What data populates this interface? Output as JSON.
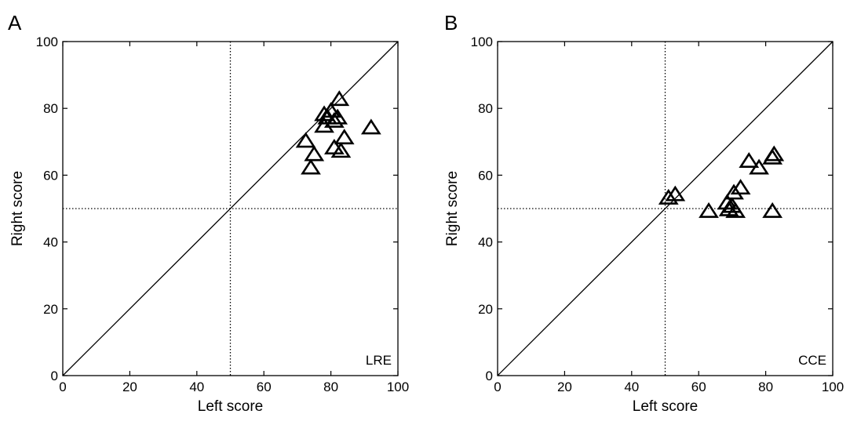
{
  "figure": {
    "colors": {
      "axes": "#000000",
      "marker": "#000000",
      "background": "#ffffff"
    },
    "marker_shape": "triangle-open"
  },
  "chart_data": [
    {
      "panel_label": "A",
      "type": "scatter",
      "xlabel": "Left score",
      "ylabel": "Right score",
      "xlim": [
        0,
        100
      ],
      "ylim": [
        0,
        100
      ],
      "xticks": [
        0,
        20,
        40,
        60,
        80,
        100
      ],
      "yticks": [
        0,
        20,
        40,
        60,
        80,
        100
      ],
      "grid": false,
      "annotation": "LRE",
      "reference_lines": {
        "diagonal": "y=x",
        "vertical_x": 50,
        "horizontal_y": 50
      },
      "points": [
        {
          "x": 82.5,
          "y": 82.5
        },
        {
          "x": 78,
          "y": 78
        },
        {
          "x": 80,
          "y": 79
        },
        {
          "x": 79,
          "y": 77
        },
        {
          "x": 82,
          "y": 77
        },
        {
          "x": 81,
          "y": 76
        },
        {
          "x": 78,
          "y": 74.5
        },
        {
          "x": 92,
          "y": 74
        },
        {
          "x": 72.5,
          "y": 70
        },
        {
          "x": 84,
          "y": 71
        },
        {
          "x": 81,
          "y": 68
        },
        {
          "x": 83,
          "y": 67
        },
        {
          "x": 75,
          "y": 66
        },
        {
          "x": 74,
          "y": 62
        }
      ]
    },
    {
      "panel_label": "B",
      "type": "scatter",
      "xlabel": "Left score",
      "ylabel": "Right score",
      "xlim": [
        0,
        100
      ],
      "ylim": [
        0,
        100
      ],
      "xticks": [
        0,
        20,
        40,
        60,
        80,
        100
      ],
      "yticks": [
        0,
        20,
        40,
        60,
        80,
        100
      ],
      "grid": false,
      "annotation": "CCE",
      "reference_lines": {
        "diagonal": "y=x",
        "vertical_x": 50,
        "horizontal_y": 50
      },
      "points": [
        {
          "x": 82.5,
          "y": 66
        },
        {
          "x": 82,
          "y": 65
        },
        {
          "x": 75,
          "y": 64
        },
        {
          "x": 78,
          "y": 62
        },
        {
          "x": 72.5,
          "y": 56
        },
        {
          "x": 70.5,
          "y": 54.5
        },
        {
          "x": 53,
          "y": 54
        },
        {
          "x": 51,
          "y": 53
        },
        {
          "x": 68.5,
          "y": 51.5
        },
        {
          "x": 70,
          "y": 50.5
        },
        {
          "x": 69,
          "y": 49.5
        },
        {
          "x": 71,
          "y": 49
        },
        {
          "x": 63,
          "y": 49
        },
        {
          "x": 82,
          "y": 49
        }
      ]
    }
  ]
}
